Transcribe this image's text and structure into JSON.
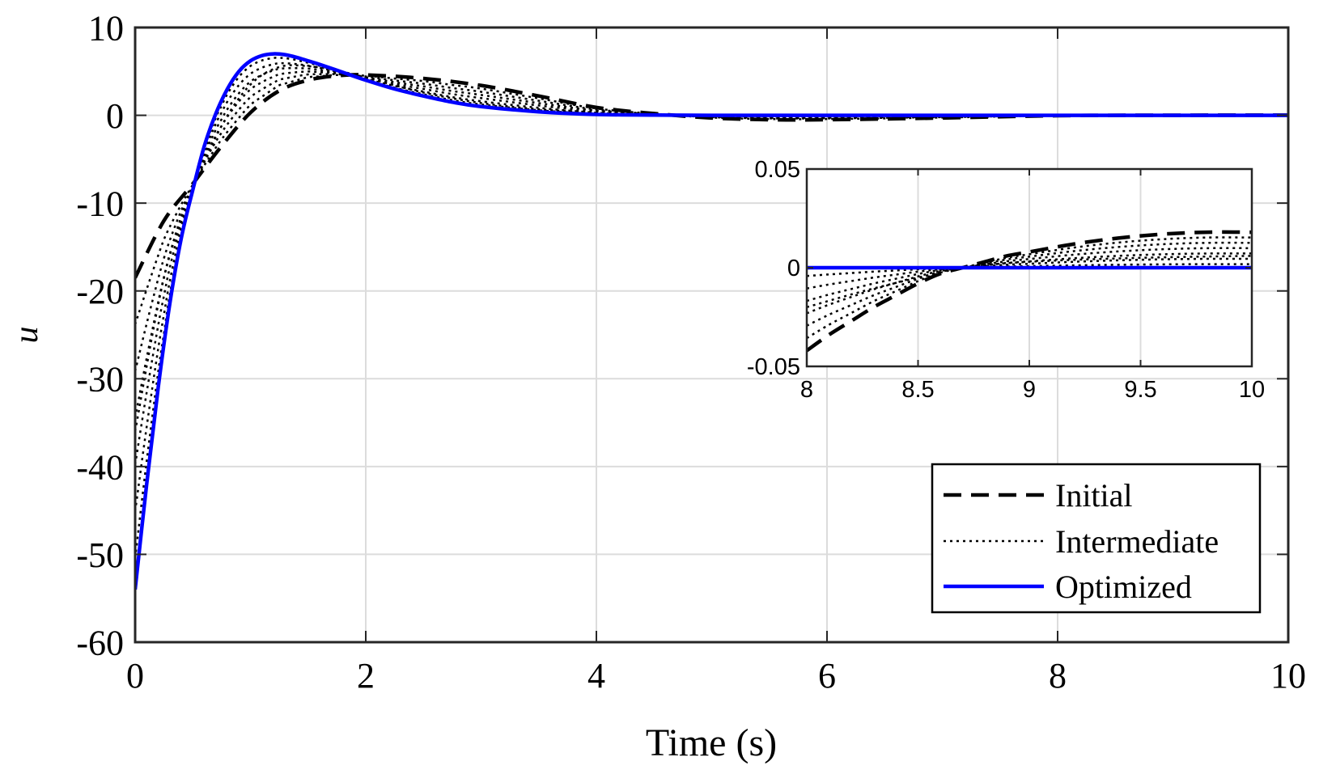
{
  "chart_data": [
    {
      "type": "line",
      "xlabel": "Time (s)",
      "ylabel": "u",
      "xlim": [
        0,
        10
      ],
      "ylim": [
        -60,
        10
      ],
      "xticks": [
        0,
        2,
        4,
        6,
        8,
        10
      ],
      "xtick_labels": [
        "0",
        "2",
        "4",
        "6",
        "8",
        "10"
      ],
      "yticks": [
        10,
        0,
        -10,
        -20,
        -30,
        -40,
        -50,
        -60
      ],
      "ytick_labels": [
        "10",
        "0",
        "-10",
        "-20",
        "-30",
        "-40",
        "-50",
        "-60"
      ],
      "grid": true,
      "legend": {
        "position": "bottom-right",
        "entries": [
          "Initial",
          "Intermediate",
          "Optimized"
        ]
      },
      "colors": {
        "initial": "#000000",
        "intermediate": "#000000",
        "optimized": "#0000ff"
      },
      "series": [
        {
          "name": "Initial",
          "style": "dashed",
          "x": [
            0,
            0.25,
            0.5,
            0.75,
            1.0,
            1.25,
            1.5,
            1.75,
            2.0,
            2.5,
            3.0,
            3.5,
            4.0,
            4.5,
            5.0,
            5.5,
            6.0,
            7.0,
            8.0,
            9.0,
            10.0
          ],
          "y": [
            -18.5,
            -12.0,
            -7.8,
            -3.5,
            0.3,
            2.8,
            4.0,
            4.5,
            4.6,
            4.2,
            3.4,
            2.2,
            0.9,
            0.2,
            -0.3,
            -0.5,
            -0.5,
            -0.3,
            -0.04,
            0.008,
            0.018
          ]
        },
        {
          "name": "Intermediate",
          "style": "dotted",
          "x": [
            0,
            0.25,
            0.5,
            0.75,
            1.0,
            1.25,
            1.5,
            1.75,
            2.0,
            2.5,
            3.0,
            3.5,
            4.0,
            4.5,
            5.0,
            6.0,
            7.0,
            8.0,
            9.0,
            10.0
          ],
          "y": [
            -36.0,
            -18.5,
            -8.5,
            -1.2,
            3.5,
            5.5,
            5.6,
            5.1,
            4.3,
            2.6,
            1.4,
            0.7,
            0.3,
            0.1,
            0.0,
            -0.1,
            -0.05,
            -0.02,
            0.003,
            0.006
          ]
        },
        {
          "name": "Optimized",
          "style": "solid",
          "x": [
            0,
            0.1,
            0.2,
            0.3,
            0.4,
            0.5,
            0.6,
            0.7,
            0.8,
            0.9,
            1.0,
            1.1,
            1.2,
            1.3,
            1.4,
            1.5,
            1.6,
            1.8,
            2.0,
            2.25,
            2.5,
            2.75,
            3.0,
            3.5,
            4.0,
            4.5,
            5.0,
            6.0,
            7.0,
            8.0,
            9.0,
            10.0
          ],
          "y": [
            -54.0,
            -42.0,
            -31.0,
            -21.5,
            -14.0,
            -8.5,
            -3.5,
            0.2,
            3.0,
            5.0,
            6.2,
            6.8,
            7.0,
            6.9,
            6.6,
            6.2,
            5.8,
            4.9,
            4.0,
            3.0,
            2.2,
            1.5,
            1.0,
            0.4,
            0.1,
            0.03,
            0.0,
            0.0,
            0.0,
            0.0,
            0.0,
            0.0
          ]
        }
      ]
    },
    {
      "type": "line",
      "role": "inset",
      "xlim": [
        8,
        10
      ],
      "ylim": [
        -0.05,
        0.05
      ],
      "xticks": [
        8,
        8.5,
        9,
        9.5,
        10
      ],
      "xtick_labels": [
        "8",
        "8.5",
        "9",
        "9.5",
        "10"
      ],
      "yticks": [
        0.05,
        0,
        -0.05
      ],
      "ytick_labels": [
        "0.05",
        "0",
        "-0.05"
      ],
      "grid": true,
      "series": [
        {
          "name": "Initial",
          "style": "dashed",
          "x": [
            8.0,
            8.1,
            8.2,
            8.3,
            8.4,
            8.5,
            8.6,
            8.7,
            8.8,
            8.9,
            9.0,
            9.2,
            9.4,
            9.6,
            9.8,
            10.0
          ],
          "y": [
            -0.042,
            -0.034,
            -0.027,
            -0.02,
            -0.014,
            -0.008,
            -0.003,
            0.0,
            0.003,
            0.006,
            0.008,
            0.012,
            0.015,
            0.017,
            0.018,
            0.018
          ]
        },
        {
          "name": "Intermediate",
          "style": "dotted",
          "x": [
            8.0,
            8.25,
            8.5,
            8.7,
            9.0,
            9.5,
            10.0
          ],
          "y": [
            -0.02,
            -0.012,
            -0.005,
            0.0,
            0.003,
            0.005,
            0.006
          ]
        },
        {
          "name": "Optimized",
          "style": "solid",
          "x": [
            8.0,
            10.0
          ],
          "y": [
            0.0,
            0.0
          ]
        }
      ]
    }
  ]
}
